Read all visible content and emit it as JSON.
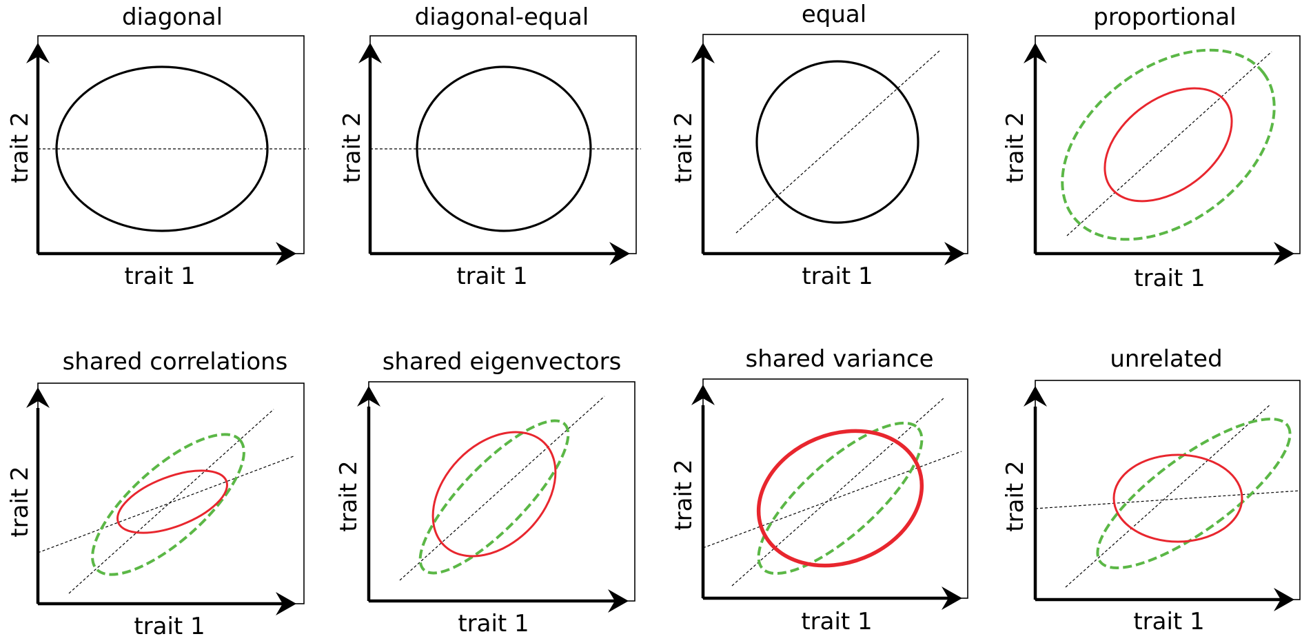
{
  "colors": {
    "red": "#e8262e",
    "green": "#5bb746",
    "black": "#000000"
  },
  "panels": [
    {
      "title": "diagonal",
      "xlabel": "trait 1",
      "ylabel": "trait 2"
    },
    {
      "title": "diagonal-equal",
      "xlabel": "trait 1",
      "ylabel": "trait 2"
    },
    {
      "title": "equal",
      "xlabel": "trait 1",
      "ylabel": "trait 2"
    },
    {
      "title": "proportional",
      "xlabel": "trait 1",
      "ylabel": "trait 2"
    },
    {
      "title": "shared correlations",
      "xlabel": "trait 1",
      "ylabel": "trait 2"
    },
    {
      "title": "shared eigenvectors",
      "xlabel": "trait 1",
      "ylabel": "trait 2"
    },
    {
      "title": "shared variance",
      "xlabel": "trait 1",
      "ylabel": "trait 2"
    },
    {
      "title": "unrelated",
      "xlabel": "trait 1",
      "ylabel": "trait 2"
    }
  ]
}
